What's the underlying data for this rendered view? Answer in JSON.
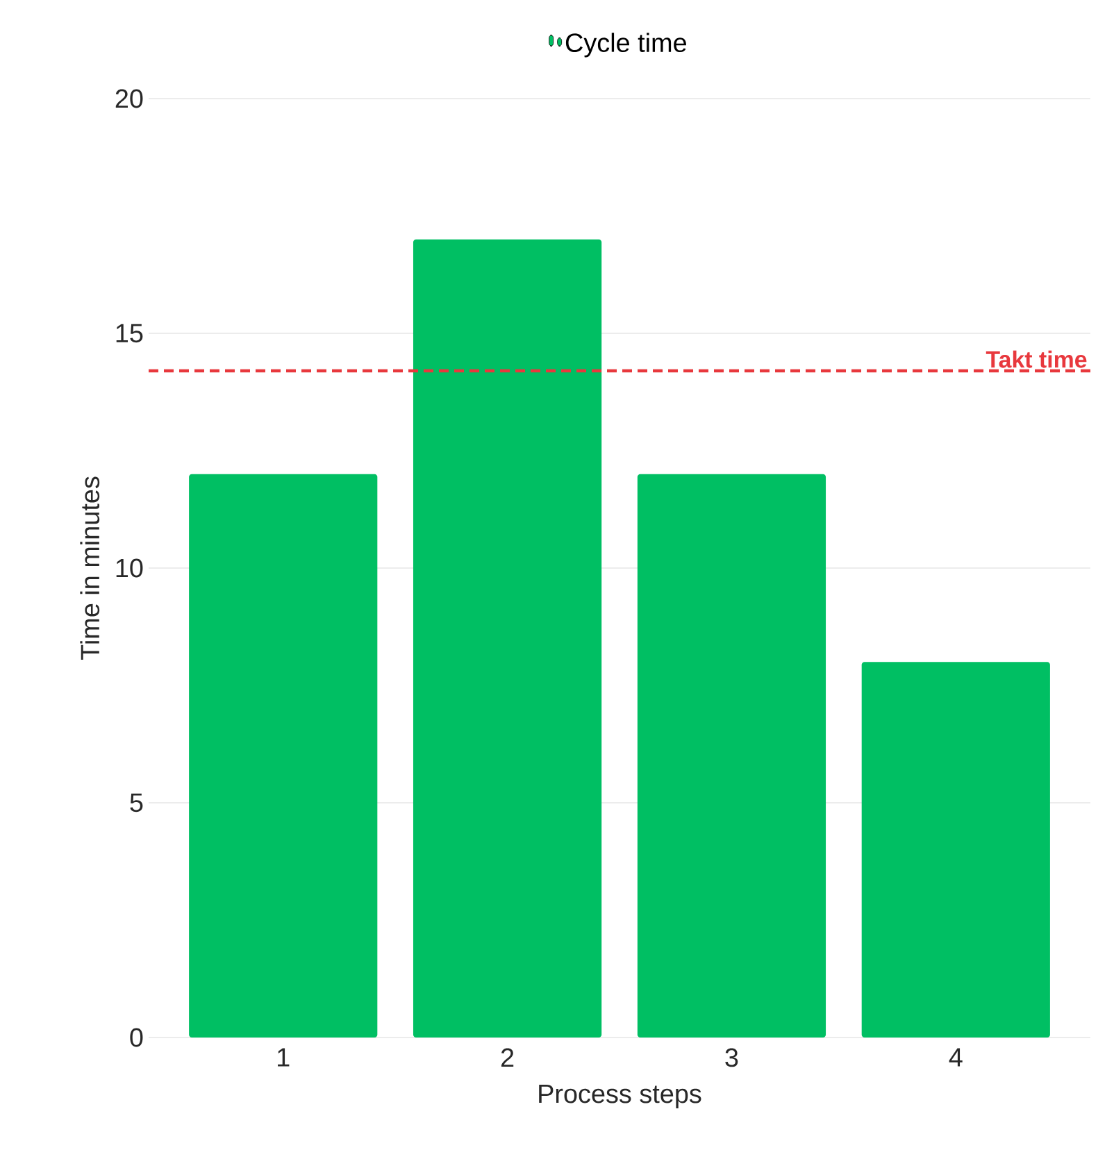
{
  "chart_data": {
    "type": "bar",
    "categories": [
      "1",
      "2",
      "3",
      "4"
    ],
    "series": [
      {
        "name": "Cycle time",
        "color": "#00bf63",
        "values": [
          12,
          17,
          12,
          8
        ]
      }
    ],
    "xlabel": "Process steps",
    "ylabel": "Time in minutes",
    "ylim": [
      0,
      20
    ],
    "yticks": [
      0,
      5,
      10,
      15,
      20
    ],
    "grid": "y",
    "legend": "top",
    "ref_lines": [
      {
        "axis": "y",
        "value": 14.2,
        "label": "Takt time",
        "color": "#e8383d",
        "line_style": "dashed"
      }
    ]
  }
}
